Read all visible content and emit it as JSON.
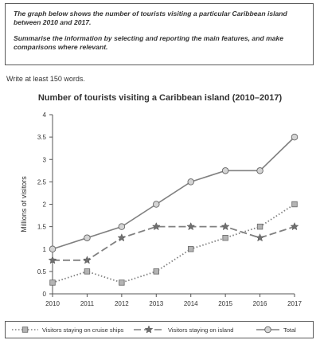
{
  "task": {
    "paragraph1": "The graph below shows the number of tourists visiting a particular Caribbean island between 2010 and 2017.",
    "paragraph2": "Summarise the information by selecting and reporting the main features, and make comparisons where relevant."
  },
  "instruction": "Write at least 150 words.",
  "chart_data": {
    "type": "line",
    "title": "Number of tourists visiting a Caribbean island (2010–2017)",
    "xlabel": "",
    "ylabel": "Millions of visitors",
    "ylim": [
      0,
      4
    ],
    "yticks": [
      "0",
      "0.5",
      "1",
      "1.5",
      "2",
      "2.5",
      "3",
      "3.5",
      "4"
    ],
    "x": [
      "2010",
      "2011",
      "2012",
      "2013",
      "2014",
      "2015",
      "2016",
      "2017"
    ],
    "grid": false,
    "legend_position": "bottom",
    "series": [
      {
        "name": "Visitors staying on cruise ships",
        "values": [
          0.25,
          0.5,
          0.25,
          0.5,
          1.0,
          1.25,
          1.5,
          2.0
        ],
        "line_style": "dotted",
        "marker": "square",
        "color": "#808080"
      },
      {
        "name": "Visitors staying on island",
        "values": [
          0.75,
          0.75,
          1.25,
          1.5,
          1.5,
          1.5,
          1.25,
          1.5
        ],
        "line_style": "dashed",
        "marker": "star",
        "color": "#808080"
      },
      {
        "name": "Total",
        "values": [
          1.0,
          1.25,
          1.5,
          2.0,
          2.5,
          2.75,
          2.75,
          3.5
        ],
        "line_style": "solid",
        "marker": "circle",
        "color": "#808080"
      }
    ]
  }
}
